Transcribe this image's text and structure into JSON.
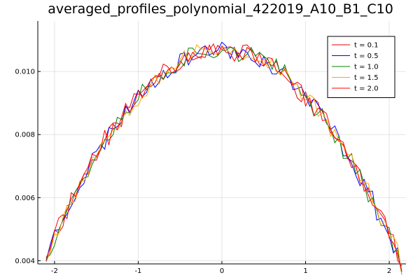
{
  "chart_data": {
    "type": "line",
    "title": "averaged_profiles_polynomial_422019_A10_B1_C10",
    "xlabel": "",
    "ylabel": "",
    "xlim": [
      -2.2,
      2.2
    ],
    "ylim": [
      0.0039,
      0.0116
    ],
    "xticks": [
      -2,
      -1,
      0,
      1,
      2
    ],
    "xtick_labels": [
      "-2",
      "-1",
      "0",
      "1",
      "2"
    ],
    "yticks": [
      0.004,
      0.006,
      0.008,
      0.01
    ],
    "ytick_labels": [
      "0.004",
      "0.006",
      "0.008",
      "0.010"
    ],
    "grid": true,
    "legend_position": "top-right",
    "profile": {
      "x_start": -2.1,
      "x_end": 2.15,
      "n_points": 86,
      "peak": 0.0107,
      "peak_x": 0.0,
      "curvature": 0.00148
    },
    "series": [
      {
        "name": "t = 0.1",
        "color": "#e8000b",
        "seed": 11
      },
      {
        "name": "t = 0.5",
        "color": "#0000ff",
        "seed": 23
      },
      {
        "name": "t = 1.0",
        "color": "#008000",
        "seed": 37
      },
      {
        "name": "t = 1.5",
        "color": "#ffa500",
        "seed": 53
      },
      {
        "name": "t = 2.0",
        "color": "#ff0000",
        "seed": 71
      }
    ]
  }
}
